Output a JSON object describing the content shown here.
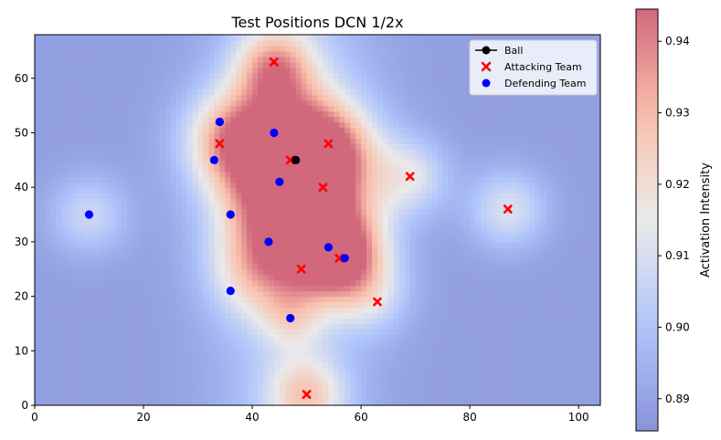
{
  "chart_data": {
    "type": "scatter",
    "title": "Test Positions DCN 1/2x",
    "xlabel": "",
    "ylabel": "",
    "xlim": [
      0,
      104
    ],
    "ylim": [
      0,
      68
    ],
    "x_ticks": [
      0,
      20,
      40,
      60,
      80,
      100
    ],
    "y_ticks": [
      0,
      10,
      20,
      30,
      40,
      50,
      60
    ],
    "grid": false,
    "legend_position": "upper right",
    "series": [
      {
        "name": "Ball",
        "marker": "circle-line",
        "color": "#000000",
        "points": [
          [
            48,
            45
          ]
        ]
      },
      {
        "name": "Attacking Team",
        "marker": "x",
        "color": "#ff0000",
        "points": [
          [
            44,
            63
          ],
          [
            34,
            48
          ],
          [
            54,
            48
          ],
          [
            47,
            45
          ],
          [
            69,
            42
          ],
          [
            53,
            40
          ],
          [
            87,
            36
          ],
          [
            56,
            27
          ],
          [
            49,
            25
          ],
          [
            63,
            19
          ],
          [
            50,
            2
          ]
        ]
      },
      {
        "name": "Defending Team",
        "marker": "circle",
        "color": "#0000ff",
        "points": [
          [
            34,
            52
          ],
          [
            44,
            50
          ],
          [
            33,
            45
          ],
          [
            45,
            41
          ],
          [
            10,
            35
          ],
          [
            36,
            35
          ],
          [
            43,
            30
          ],
          [
            54,
            29
          ],
          [
            57,
            27
          ],
          [
            36,
            21
          ],
          [
            47,
            16
          ]
        ]
      }
    ],
    "heatmap": {
      "colormap": "coolwarm",
      "alpha": 0.6,
      "base_value": 0.889,
      "hotspots": [
        {
          "x": 47,
          "y": 45,
          "strength": 0.055,
          "spread": 9
        },
        {
          "x": 54,
          "y": 46,
          "strength": 0.028,
          "spread": 6
        },
        {
          "x": 36,
          "y": 49,
          "strength": 0.03,
          "spread": 6
        },
        {
          "x": 44,
          "y": 62,
          "strength": 0.035,
          "spread": 5
        },
        {
          "x": 56,
          "y": 28,
          "strength": 0.05,
          "spread": 6
        },
        {
          "x": 47,
          "y": 32,
          "strength": 0.035,
          "spread": 8
        },
        {
          "x": 40,
          "y": 24,
          "strength": 0.018,
          "spread": 6
        },
        {
          "x": 62,
          "y": 20,
          "strength": 0.015,
          "spread": 5
        },
        {
          "x": 50,
          "y": 2,
          "strength": 0.028,
          "spread": 5
        },
        {
          "x": 69,
          "y": 42,
          "strength": 0.022,
          "spread": 5
        },
        {
          "x": 87,
          "y": 36,
          "strength": 0.022,
          "spread": 5
        },
        {
          "x": 10,
          "y": 35,
          "strength": 0.018,
          "spread": 5
        },
        {
          "x": 47,
          "y": 16,
          "strength": 0.015,
          "spread": 4
        }
      ]
    },
    "colorbar": {
      "label": "Activation Intensity",
      "min": 0.8855,
      "max": 0.9445,
      "ticks": [
        0.89,
        0.9,
        0.91,
        0.92,
        0.93,
        0.94
      ],
      "tick_labels": [
        "0.89",
        "0.90",
        "0.91",
        "0.92",
        "0.93",
        "0.94"
      ]
    }
  }
}
